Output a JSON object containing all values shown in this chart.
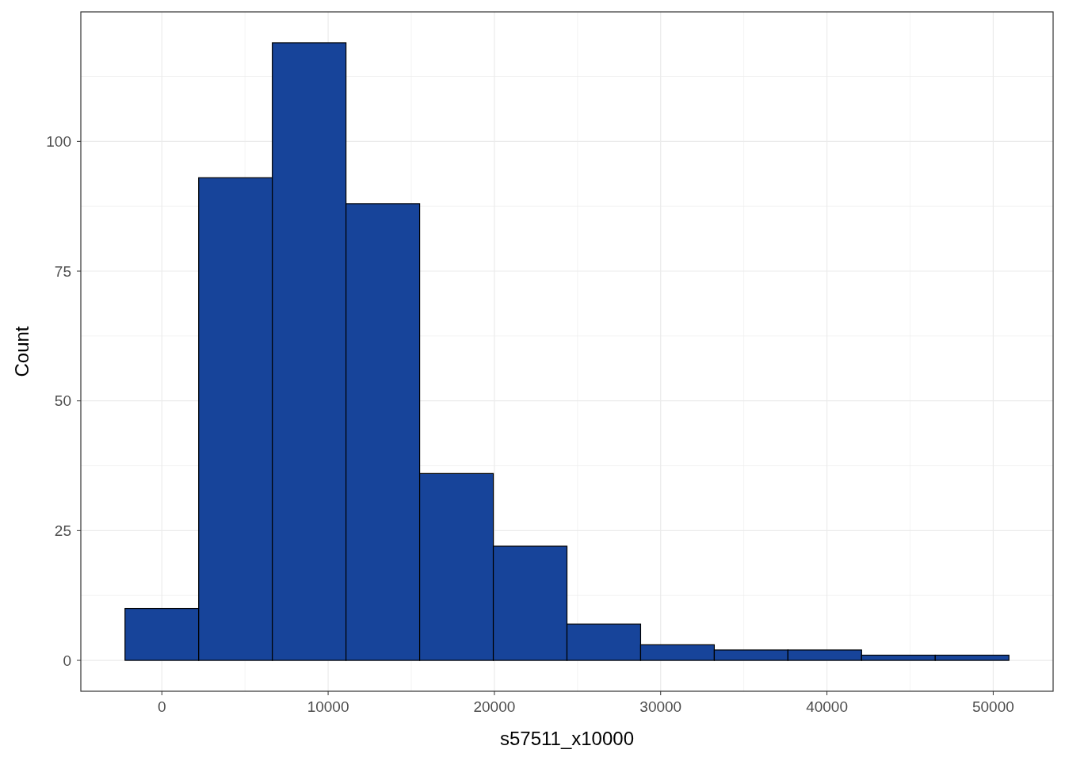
{
  "chart_data": {
    "type": "histogram",
    "xlabel": "s57511_x10000",
    "ylabel": "Count",
    "bins": [
      -2215,
      2215,
      6645,
      11075,
      15505,
      19935,
      24365,
      28795,
      33225,
      37655,
      42085,
      46515,
      50945
    ],
    "values": [
      10,
      93,
      119,
      88,
      36,
      22,
      7,
      3,
      2,
      2,
      1,
      1
    ],
    "color": "#17449a",
    "xlim": [
      -4873,
      53603
    ],
    "ylim": [
      -5.95,
      124.95
    ],
    "xticks": [
      0,
      {
        "value": 5000,
        "label": null
      },
      10000,
      {
        "value": 15000,
        "label": null
      },
      20000,
      {
        "value": 25000,
        "label": null
      },
      30000,
      {
        "value": 35000,
        "label": null
      },
      40000,
      {
        "value": 45000,
        "label": null
      },
      50000
    ],
    "yticks": [
      0,
      {
        "value": 12.5,
        "label": null
      },
      25,
      {
        "value": 37.5,
        "label": null
      },
      50,
      {
        "value": 62.5,
        "label": null
      },
      75,
      {
        "value": 87.5,
        "label": null
      },
      100,
      {
        "value": 112.5,
        "label": null
      }
    ],
    "grid": true
  }
}
